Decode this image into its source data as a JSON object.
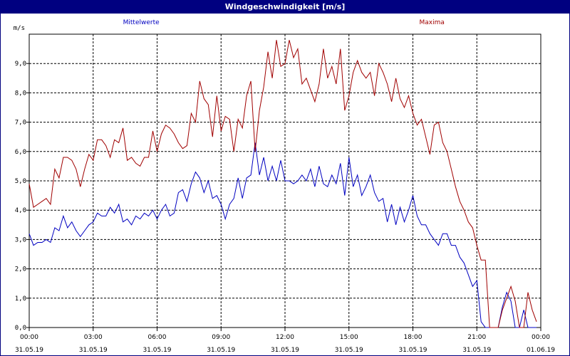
{
  "window": {
    "title": "Windgeschwindigkeit [m/s]"
  },
  "colors": {
    "mean": "#0000c0",
    "max": "#a00000",
    "titlebar": "#000080",
    "grid": "#000000"
  },
  "chart_data": {
    "type": "line",
    "title": "Windgeschwindigkeit [m/s]",
    "ylabel": "m/s",
    "ylim": [
      0,
      10
    ],
    "yticks": [
      "0,0",
      "1,0",
      "2,0",
      "3,0",
      "4,0",
      "5,0",
      "6,0",
      "7,0",
      "8,0",
      "9,0"
    ],
    "xlim": [
      0,
      24
    ],
    "xticks": [
      {
        "time": "00:00",
        "date": "31.05.19"
      },
      {
        "time": "03:00",
        "date": "31.05.19"
      },
      {
        "time": "06:00",
        "date": "31.05.19"
      },
      {
        "time": "09:00",
        "date": "31.05.19"
      },
      {
        "time": "12:00",
        "date": "31.05.19"
      },
      {
        "time": "15:00",
        "date": "31.05.19"
      },
      {
        "time": "18:00",
        "date": "31.05.19"
      },
      {
        "time": "21:00",
        "date": "31.05.19"
      },
      {
        "time": "00:00",
        "date": "01.06.19"
      }
    ],
    "grid": true,
    "series": [
      {
        "name": "Mittelwerte",
        "color": "#0000c0",
        "label_position": "top-left",
        "points": [
          [
            0,
            3.2
          ],
          [
            0.2,
            2.8
          ],
          [
            0.4,
            2.9
          ],
          [
            0.6,
            2.9
          ],
          [
            0.8,
            3.0
          ],
          [
            1.0,
            2.9
          ],
          [
            1.2,
            3.4
          ],
          [
            1.4,
            3.3
          ],
          [
            1.6,
            3.8
          ],
          [
            1.8,
            3.4
          ],
          [
            2.0,
            3.6
          ],
          [
            2.2,
            3.3
          ],
          [
            2.4,
            3.1
          ],
          [
            2.6,
            3.3
          ],
          [
            2.8,
            3.5
          ],
          [
            3.0,
            3.6
          ],
          [
            3.2,
            3.9
          ],
          [
            3.4,
            3.8
          ],
          [
            3.6,
            3.8
          ],
          [
            3.8,
            4.1
          ],
          [
            4.0,
            3.9
          ],
          [
            4.2,
            4.2
          ],
          [
            4.4,
            3.6
          ],
          [
            4.6,
            3.7
          ],
          [
            4.8,
            3.5
          ],
          [
            5.0,
            3.8
          ],
          [
            5.2,
            3.7
          ],
          [
            5.4,
            3.9
          ],
          [
            5.6,
            3.8
          ],
          [
            5.8,
            4.0
          ],
          [
            6.0,
            3.7
          ],
          [
            6.2,
            4.0
          ],
          [
            6.4,
            4.2
          ],
          [
            6.6,
            3.8
          ],
          [
            6.8,
            3.9
          ],
          [
            7.0,
            4.6
          ],
          [
            7.2,
            4.7
          ],
          [
            7.4,
            4.3
          ],
          [
            7.6,
            4.9
          ],
          [
            7.8,
            5.3
          ],
          [
            8.0,
            5.1
          ],
          [
            8.2,
            4.6
          ],
          [
            8.4,
            5.0
          ],
          [
            8.6,
            4.4
          ],
          [
            8.8,
            4.5
          ],
          [
            9.0,
            4.2
          ],
          [
            9.2,
            3.7
          ],
          [
            9.4,
            4.2
          ],
          [
            9.6,
            4.4
          ],
          [
            9.8,
            5.1
          ],
          [
            10.0,
            4.4
          ],
          [
            10.2,
            5.1
          ],
          [
            10.4,
            5.2
          ],
          [
            10.6,
            6.3
          ],
          [
            10.8,
            5.2
          ],
          [
            11.0,
            5.8
          ],
          [
            11.2,
            5.0
          ],
          [
            11.4,
            5.5
          ],
          [
            11.6,
            5.0
          ],
          [
            11.8,
            5.7
          ],
          [
            12.0,
            5.0
          ],
          [
            12.2,
            5.0
          ],
          [
            12.4,
            4.9
          ],
          [
            12.6,
            5.0
          ],
          [
            12.8,
            5.2
          ],
          [
            13.0,
            5.0
          ],
          [
            13.2,
            5.4
          ],
          [
            13.4,
            4.8
          ],
          [
            13.6,
            5.5
          ],
          [
            13.8,
            4.9
          ],
          [
            14.0,
            4.8
          ],
          [
            14.2,
            5.2
          ],
          [
            14.4,
            4.9
          ],
          [
            14.6,
            5.6
          ],
          [
            14.8,
            4.5
          ],
          [
            15.0,
            5.8
          ],
          [
            15.2,
            4.8
          ],
          [
            15.4,
            5.2
          ],
          [
            15.6,
            4.5
          ],
          [
            15.8,
            4.8
          ],
          [
            16.0,
            5.2
          ],
          [
            16.2,
            4.6
          ],
          [
            16.4,
            4.3
          ],
          [
            16.6,
            4.4
          ],
          [
            16.8,
            3.6
          ],
          [
            17.0,
            4.2
          ],
          [
            17.2,
            3.5
          ],
          [
            17.4,
            4.1
          ],
          [
            17.6,
            3.6
          ],
          [
            17.8,
            4.0
          ],
          [
            18.0,
            4.5
          ],
          [
            18.2,
            3.8
          ],
          [
            18.4,
            3.5
          ],
          [
            18.6,
            3.5
          ],
          [
            18.8,
            3.2
          ],
          [
            19.0,
            3.0
          ],
          [
            19.2,
            2.8
          ],
          [
            19.4,
            3.2
          ],
          [
            19.6,
            3.2
          ],
          [
            19.8,
            2.8
          ],
          [
            20.0,
            2.8
          ],
          [
            20.2,
            2.4
          ],
          [
            20.4,
            2.2
          ],
          [
            20.6,
            1.8
          ],
          [
            20.8,
            1.4
          ],
          [
            21.0,
            1.6
          ],
          [
            21.2,
            0.2
          ],
          [
            21.4,
            0.0
          ],
          [
            21.6,
            0.0
          ],
          [
            21.8,
            0.0
          ],
          [
            22.0,
            0.0
          ],
          [
            22.2,
            0.7
          ],
          [
            22.4,
            1.2
          ],
          [
            22.6,
            0.9
          ],
          [
            22.8,
            0.0
          ],
          [
            23.0,
            0.0
          ],
          [
            23.2,
            0.6
          ],
          [
            23.4,
            0.0
          ],
          [
            23.6,
            0.0
          ],
          [
            23.8,
            0.0
          ]
        ]
      },
      {
        "name": "Maxima",
        "color": "#a00000",
        "label_position": "top-right",
        "points": [
          [
            0,
            4.9
          ],
          [
            0.2,
            4.1
          ],
          [
            0.4,
            4.2
          ],
          [
            0.6,
            4.3
          ],
          [
            0.8,
            4.4
          ],
          [
            1.0,
            4.2
          ],
          [
            1.2,
            5.4
          ],
          [
            1.4,
            5.1
          ],
          [
            1.6,
            5.8
          ],
          [
            1.8,
            5.8
          ],
          [
            2.0,
            5.7
          ],
          [
            2.2,
            5.4
          ],
          [
            2.4,
            4.8
          ],
          [
            2.6,
            5.4
          ],
          [
            2.8,
            5.9
          ],
          [
            3.0,
            5.7
          ],
          [
            3.2,
            6.4
          ],
          [
            3.4,
            6.4
          ],
          [
            3.6,
            6.2
          ],
          [
            3.8,
            5.8
          ],
          [
            4.0,
            6.4
          ],
          [
            4.2,
            6.3
          ],
          [
            4.4,
            6.8
          ],
          [
            4.6,
            5.7
          ],
          [
            4.8,
            5.8
          ],
          [
            5.0,
            5.6
          ],
          [
            5.2,
            5.5
          ],
          [
            5.4,
            5.8
          ],
          [
            5.6,
            5.8
          ],
          [
            5.8,
            6.7
          ],
          [
            6.0,
            6.0
          ],
          [
            6.2,
            6.6
          ],
          [
            6.4,
            6.9
          ],
          [
            6.6,
            6.8
          ],
          [
            6.8,
            6.6
          ],
          [
            7.0,
            6.3
          ],
          [
            7.2,
            6.1
          ],
          [
            7.4,
            6.2
          ],
          [
            7.6,
            7.3
          ],
          [
            7.8,
            7.0
          ],
          [
            8.0,
            8.4
          ],
          [
            8.2,
            7.8
          ],
          [
            8.4,
            7.6
          ],
          [
            8.6,
            6.5
          ],
          [
            8.8,
            7.9
          ],
          [
            9.0,
            6.7
          ],
          [
            9.2,
            7.2
          ],
          [
            9.4,
            7.1
          ],
          [
            9.6,
            6.0
          ],
          [
            9.8,
            7.1
          ],
          [
            10.0,
            6.8
          ],
          [
            10.2,
            7.9
          ],
          [
            10.4,
            8.4
          ],
          [
            10.6,
            6.0
          ],
          [
            10.8,
            7.4
          ],
          [
            11.0,
            8.2
          ],
          [
            11.2,
            9.4
          ],
          [
            11.4,
            8.5
          ],
          [
            11.6,
            9.8
          ],
          [
            11.8,
            8.9
          ],
          [
            12.0,
            9.0
          ],
          [
            12.2,
            9.8
          ],
          [
            12.4,
            9.2
          ],
          [
            12.6,
            9.5
          ],
          [
            12.8,
            8.3
          ],
          [
            13.0,
            8.5
          ],
          [
            13.2,
            8.1
          ],
          [
            13.4,
            7.7
          ],
          [
            13.6,
            8.3
          ],
          [
            13.8,
            9.5
          ],
          [
            14.0,
            8.5
          ],
          [
            14.2,
            8.9
          ],
          [
            14.4,
            8.3
          ],
          [
            14.6,
            9.5
          ],
          [
            14.8,
            7.4
          ],
          [
            15.0,
            7.9
          ],
          [
            15.2,
            8.7
          ],
          [
            15.4,
            9.1
          ],
          [
            15.6,
            8.7
          ],
          [
            15.8,
            8.5
          ],
          [
            16.0,
            8.7
          ],
          [
            16.2,
            7.9
          ],
          [
            16.4,
            9.0
          ],
          [
            16.6,
            8.7
          ],
          [
            16.8,
            8.3
          ],
          [
            17.0,
            7.7
          ],
          [
            17.2,
            8.5
          ],
          [
            17.4,
            7.8
          ],
          [
            17.6,
            7.5
          ],
          [
            17.8,
            7.9
          ],
          [
            18.0,
            7.3
          ],
          [
            18.2,
            6.9
          ],
          [
            18.4,
            7.1
          ],
          [
            18.6,
            6.5
          ],
          [
            18.8,
            5.9
          ],
          [
            19.0,
            6.9
          ],
          [
            19.2,
            7.0
          ],
          [
            19.4,
            6.3
          ],
          [
            19.6,
            6.0
          ],
          [
            19.8,
            5.4
          ],
          [
            20.0,
            4.8
          ],
          [
            20.2,
            4.3
          ],
          [
            20.4,
            4.0
          ],
          [
            20.6,
            3.6
          ],
          [
            20.8,
            3.4
          ],
          [
            21.0,
            2.8
          ],
          [
            21.2,
            2.3
          ],
          [
            21.4,
            2.3
          ],
          [
            21.6,
            0.0
          ],
          [
            21.8,
            0.0
          ],
          [
            22.0,
            0.0
          ],
          [
            22.2,
            0.6
          ],
          [
            22.4,
            1.0
          ],
          [
            22.6,
            1.4
          ],
          [
            22.8,
            0.9
          ],
          [
            23.0,
            0.0
          ],
          [
            23.2,
            0.0
          ],
          [
            23.4,
            1.2
          ],
          [
            23.6,
            0.6
          ],
          [
            23.8,
            0.2
          ]
        ]
      }
    ]
  }
}
